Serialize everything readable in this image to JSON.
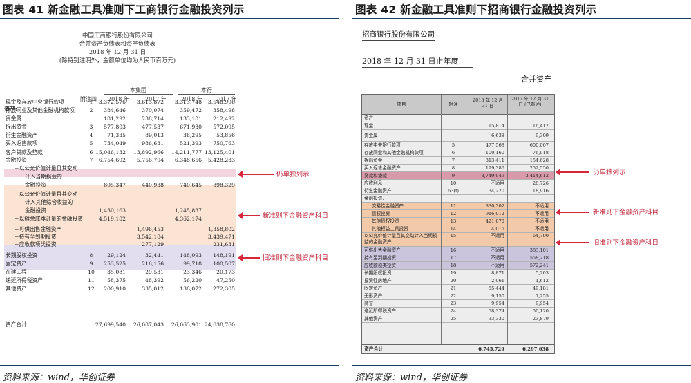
{
  "left_figure": {
    "title": "图表 41   新金融工具准则下工商银行金融投资列示",
    "header_lines": [
      "中国工商银行股份有限公司",
      "合并资产负债表和资产负债表",
      "2018 年 12 月 31 日",
      "(除特别注明外，金额单位均为人民币百万元)"
    ],
    "group_group": "本集团",
    "group_bank": "本行",
    "col_note": "附注四",
    "col_years": [
      "2018 年",
      "2017 年",
      "2018 年",
      "2017 年"
    ],
    "section": "资产:",
    "rows": [
      {
        "label": "现金及存放中央银行款项",
        "note": "1",
        "v": [
          "3,372,576",
          "3,613,872",
          "3,313,748",
          "3,548,996"
        ]
      },
      {
        "label": "存放同业及其他金融机构款项",
        "note": "2",
        "v": [
          "384,646",
          "370,074",
          "359,472",
          "358,498"
        ]
      },
      {
        "label": "贵金属",
        "note": "",
        "v": [
          "181,292",
          "238,714",
          "133,181",
          "212,492"
        ]
      },
      {
        "label": "拆出资金",
        "note": "3",
        "v": [
          "577,803",
          "477,537",
          "671,930",
          "572,095"
        ]
      },
      {
        "label": "衍生金融资产",
        "note": "4",
        "v": [
          "71,335",
          "89,013",
          "38,295",
          "53,856"
        ]
      },
      {
        "label": "买入返售款项",
        "note": "5",
        "v": [
          "734,049",
          "986,631",
          "521,393",
          "750,763"
        ]
      },
      {
        "label": "客户贷款及垫款",
        "note": "6",
        "v": [
          "15,046,132",
          "13,892,966",
          "14,211,777",
          "13,125,401"
        ]
      },
      {
        "label": "金融投资",
        "note": "7",
        "v": [
          "6,754,692",
          "5,756,704",
          "6,348,656",
          "5,428,233"
        ]
      },
      {
        "label": "－以公允价值计量且其变动",
        "note": "",
        "v": [
          "",
          "",
          "",
          ""
        ]
      },
      {
        "label": "计入当期损益的",
        "note": "",
        "v": [
          "",
          "",
          "",
          ""
        ]
      },
      {
        "label": "金融投资",
        "note": "",
        "v": [
          "805,347",
          "440,938",
          "740,645",
          "398,329"
        ]
      },
      {
        "label": "－以公允价值计量且其变动",
        "note": "",
        "v": [
          "",
          "",
          "",
          ""
        ]
      },
      {
        "label": "计入其他综合收益的",
        "note": "",
        "v": [
          "",
          "",
          "",
          ""
        ]
      },
      {
        "label": "金融投资",
        "note": "",
        "v": [
          "1,430,163",
          "",
          "1,245,837",
          ""
        ]
      },
      {
        "label": "－以摊余成本计量的金融投资",
        "note": "",
        "v": [
          "4,519,182",
          "",
          "4,362,174",
          ""
        ]
      },
      {
        "label": "－可供出售金融资产",
        "note": "",
        "v": [
          "",
          "1,496,453",
          "",
          "1,358,802"
        ]
      },
      {
        "label": "－持有至到期投资",
        "note": "",
        "v": [
          "",
          "3,542,184",
          "",
          "3,439,471"
        ]
      },
      {
        "label": "－应收款项类投资",
        "note": "",
        "v": [
          "",
          "277,129",
          "",
          "231,631"
        ]
      },
      {
        "label": "长期股权投资",
        "note": "8",
        "v": [
          "29,124",
          "32,441",
          "148,093",
          "148,191"
        ]
      },
      {
        "label": "固定资产",
        "note": "9",
        "v": [
          "253,525",
          "216,156",
          "99,718",
          "100,507"
        ]
      },
      {
        "label": "在建工程",
        "note": "10",
        "v": [
          "35,081",
          "29,531",
          "23,346",
          "20,173"
        ]
      },
      {
        "label": "递延所得税资产",
        "note": "11",
        "v": [
          "58,375",
          "48,392",
          "56,220",
          "47,250"
        ]
      },
      {
        "label": "其他资产",
        "note": "12",
        "v": [
          "200,910",
          "335,012",
          "138,072",
          "272,305"
        ]
      }
    ],
    "total": {
      "label": "资产合计",
      "v": [
        "27,699,540",
        "26,087,043",
        "26,063,901",
        "24,638,760"
      ]
    },
    "annotations": [
      "仍单独列示",
      "新准则下金融资产科目",
      "旧准则下金融资产科目"
    ],
    "source": "资料来源：wind，华创证券"
  },
  "right_figure": {
    "title": "图表 42   新金融工具准则下招商银行金融投资列示",
    "company": "招商银行股份有限公司",
    "period": "2018 年 12 月 31 日止年度",
    "subtitle": "合并资产",
    "head_item": "项目",
    "head_note": "附注",
    "head_c1": "2018 年 12 月 31 日",
    "head_c2": "2017 年 12 月 31 日 (已重述)",
    "rows": [
      {
        "label": "资产",
        "note": "",
        "v1": "",
        "v2": ""
      },
      {
        "label": "现金",
        "note": "",
        "v1": "15,814",
        "v2": "16,412"
      },
      {
        "label": "贵金属",
        "note": "",
        "v1": "6,638",
        "v2": "9,309"
      },
      {
        "label": "存放中央银行款项",
        "note": "5",
        "v1": "477,568",
        "v2": "600,007"
      },
      {
        "label": "存放同业和其他金融机构款项",
        "note": "6",
        "v1": "100,160",
        "v2": "76,918"
      },
      {
        "label": "拆出资金",
        "note": "7",
        "v1": "313,411",
        "v2": "154,628"
      },
      {
        "label": "买入返售金融资产",
        "note": "8",
        "v1": "199,386",
        "v2": "252,550"
      },
      {
        "label": "贷款和垫款",
        "note": "9",
        "v1": "3,749,949",
        "v2": "3,414,612"
      },
      {
        "label": "应收利息",
        "note": "10",
        "v1": "不适用",
        "v2": "28,726"
      },
      {
        "label": "衍生金融资产",
        "note": "63(f)",
        "v1": "34,220",
        "v2": "18,916"
      },
      {
        "label": "金融投资:",
        "note": "",
        "v1": "",
        "v2": ""
      },
      {
        "label": "交易性金融资产",
        "note": "11",
        "v1": "330,302",
        "v2": "不适用"
      },
      {
        "label": "债权投资",
        "note": "12",
        "v1": "916,012",
        "v2": "不适用"
      },
      {
        "label": "其他债权投资",
        "note": "13",
        "v1": "421,070",
        "v2": "不适用"
      },
      {
        "label": "其他权益工具投资",
        "note": "14",
        "v1": "4,015",
        "v2": "不适用"
      },
      {
        "label": "以公允价值计量且其变动计入当期损益的金融资产",
        "note": "15",
        "v1": "不适用",
        "v2": "64,790"
      },
      {
        "label": "可供出售金融资产",
        "note": "16",
        "v1": "不适用",
        "v2": "383,101"
      },
      {
        "label": "持有至到期投资",
        "note": "17",
        "v1": "不适用",
        "v2": "558,218"
      },
      {
        "label": "应收款项类投资",
        "note": "18",
        "v1": "不适用",
        "v2": "572,241"
      },
      {
        "label": "长期股权投资",
        "note": "19",
        "v1": "8,871",
        "v2": "5,203"
      },
      {
        "label": "投资性房地产",
        "note": "20",
        "v1": "2,061",
        "v2": "1,612"
      },
      {
        "label": "固定资产",
        "note": "21",
        "v1": "55,444",
        "v2": "49,181"
      },
      {
        "label": "无形资产",
        "note": "22",
        "v1": "9,150",
        "v2": "7,255"
      },
      {
        "label": "商誉",
        "note": "23",
        "v1": "9,954",
        "v2": "9,954"
      },
      {
        "label": "递延所得税资产",
        "note": "24",
        "v1": "58,374",
        "v2": "50,120"
      },
      {
        "label": "其他资产",
        "note": "25",
        "v1": "33,330",
        "v2": "23,879"
      }
    ],
    "total": {
      "label": "资产合计",
      "v1": "6,745,729",
      "v2": "6,297,638"
    },
    "annotations": [
      "仍单独列示",
      "新准则下金融资产科目",
      "旧准则下金融资产科目"
    ],
    "source": "资料来源：wind，华创证券"
  },
  "colors": {
    "accent": "#1f3a5f",
    "annotation": "#d6283c",
    "pink": "#f3d5df",
    "peach": "#fbe4d3",
    "lavender": "#e2def0"
  }
}
